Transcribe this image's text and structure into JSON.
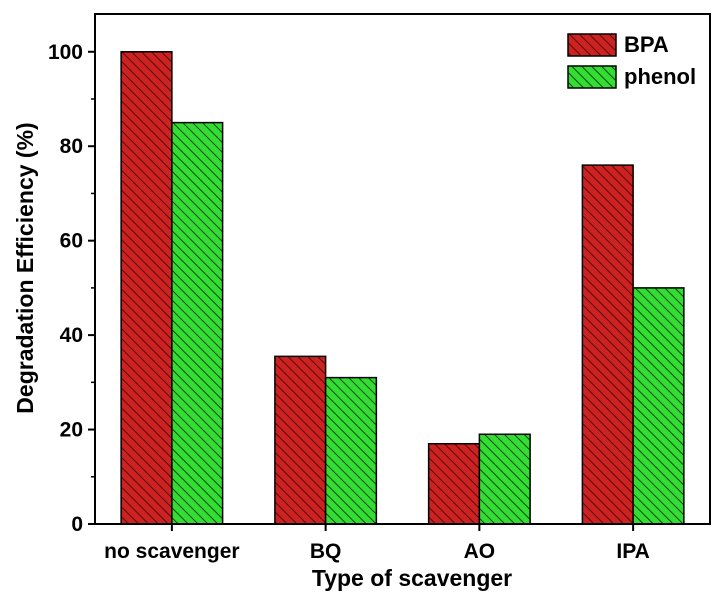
{
  "chart_data": {
    "type": "bar",
    "title": "",
    "xlabel": "Type of scavenger",
    "ylabel": "Degradation Efficiency (%)",
    "categories": [
      "no scavenger",
      "BQ",
      "AO",
      "IPA"
    ],
    "series": [
      {
        "name": "BPA",
        "values": [
          100,
          35.5,
          17,
          76
        ],
        "color": "#cc2222",
        "pattern": "diagonal-hatch"
      },
      {
        "name": "phenol",
        "values": [
          85,
          31,
          19,
          50
        ],
        "color": "#33dd33",
        "pattern": "diagonal-hatch"
      }
    ],
    "ylim": [
      0,
      108
    ],
    "yticks": [
      0,
      20,
      40,
      60,
      80,
      100
    ],
    "grid": false,
    "legend_position": "top-right"
  }
}
